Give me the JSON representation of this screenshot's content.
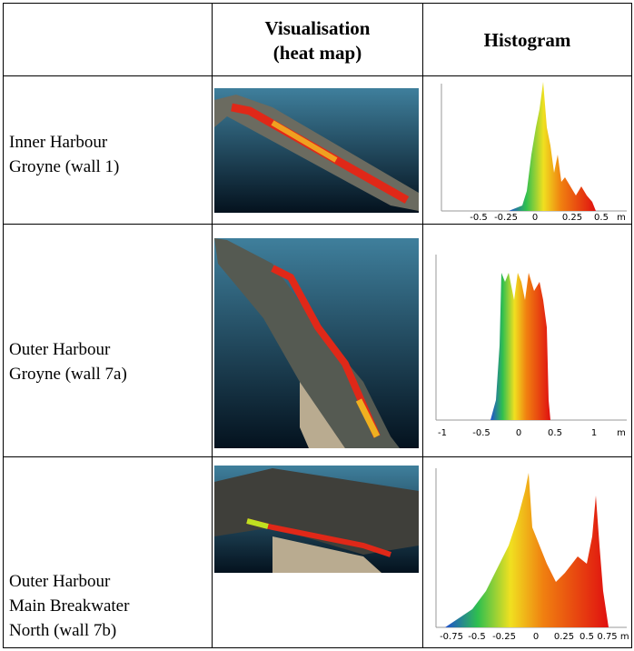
{
  "table": {
    "header": [
      "Visualisation",
      "(heat map)",
      "Histogram"
    ],
    "rows": [
      {
        "label": [
          "Inner Harbour",
          "Groyne (wall 1)"
        ],
        "axis": [
          "-0.5",
          "-0.25",
          "0",
          "0.25",
          "0.5",
          "m"
        ]
      },
      {
        "label": [
          "Outer Harbour",
          "Groyne (wall 7a)"
        ],
        "axis": [
          "-1",
          "-0.5",
          "0",
          "0.5",
          "1",
          "m"
        ]
      },
      {
        "label": [
          "Outer Harbour",
          "Main Breakwater",
          "North (wall 7b)"
        ],
        "axis": [
          "-0.75",
          "-0.5",
          "-0.25",
          "0",
          "0.25",
          "0.5",
          "0.75 m"
        ]
      }
    ]
  }
}
